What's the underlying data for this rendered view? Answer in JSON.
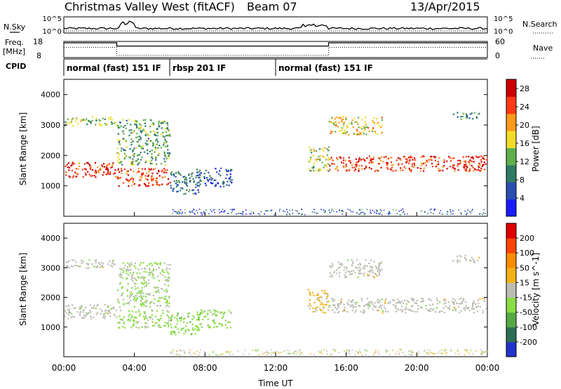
{
  "header": {
    "station": "Christmas Valley West (fitACF)",
    "beam": "Beam 07",
    "date": "13/Apr/2015"
  },
  "strips": {
    "nsky_label": "N.Sky",
    "nsky_ticks": [
      "10^5",
      "10^0"
    ],
    "nsearch_label": "N.Search",
    "nsearch_ticks": [
      "10^5",
      "10^0"
    ],
    "freq_label": "Freq.",
    "freq_unit": "[MHz]",
    "freq_ticks": [
      "18",
      "8"
    ],
    "nave_label": "Nave",
    "nave_ticks": [
      "60",
      "0"
    ],
    "cpid_label": "CPID",
    "modes": [
      {
        "label": "normal (fast) 151 IF",
        "start_h": 0,
        "end_h": 6
      },
      {
        "label": "rbsp 201 IF",
        "start_h": 6,
        "end_h": 12
      },
      {
        "label": "normal (fast) 151 IF",
        "start_h": 12,
        "end_h": 24
      }
    ],
    "freq_profile": [
      [
        0,
        18
      ],
      [
        3,
        18
      ],
      [
        3,
        16
      ],
      [
        15,
        16
      ],
      [
        15,
        18
      ],
      [
        24,
        18
      ]
    ],
    "nave_profile": [
      [
        0,
        38
      ],
      [
        3,
        38
      ],
      [
        3,
        8
      ],
      [
        15,
        8
      ],
      [
        15,
        38
      ],
      [
        24,
        38
      ]
    ]
  },
  "chart_data": [
    {
      "type": "heatmap",
      "title": "Power",
      "ylabel": "Slant Range [km]",
      "yticks": [
        "1000",
        "2000",
        "3000",
        "4000"
      ],
      "ylim": [
        0,
        4500
      ],
      "xlim": [
        0,
        24
      ],
      "colorbar": {
        "label": "Power [dB]",
        "ticks": [
          "4",
          "8",
          "12",
          "16",
          "20",
          "24",
          "28"
        ],
        "range": [
          0,
          30
        ],
        "colors": [
          "#1a1aff",
          "#2a4fb0",
          "#2f7a64",
          "#5fb04a",
          "#f0dc28",
          "#ff9a1a",
          "#ff3a14",
          "#cc0000"
        ]
      },
      "scatter_regions": [
        {
          "x": [
            0.0,
            3.0
          ],
          "y": [
            1300,
            1800
          ],
          "level": 26
        },
        {
          "x": [
            0.0,
            3.0
          ],
          "y": [
            3000,
            3300
          ],
          "level": 14
        },
        {
          "x": [
            3.0,
            6.0
          ],
          "y": [
            1000,
            1600
          ],
          "level": 25
        },
        {
          "x": [
            3.0,
            6.0
          ],
          "y": [
            1700,
            3200
          ],
          "level": 12
        },
        {
          "x": [
            6.0,
            7.7
          ],
          "y": [
            750,
            1500
          ],
          "level": 8
        },
        {
          "x": [
            7.5,
            9.5
          ],
          "y": [
            1000,
            1600
          ],
          "level": 6
        },
        {
          "x": [
            13.8,
            15.0
          ],
          "y": [
            1500,
            2300
          ],
          "level": 15
        },
        {
          "x": [
            15.0,
            24.0
          ],
          "y": [
            1500,
            2000
          ],
          "level": 25
        },
        {
          "x": [
            15.0,
            18.0
          ],
          "y": [
            2700,
            3300
          ],
          "level": 18
        },
        {
          "x": [
            22.0,
            23.5
          ],
          "y": [
            3200,
            3450
          ],
          "level": 10
        }
      ]
    },
    {
      "type": "heatmap",
      "title": "Velocity",
      "ylabel": "Slant Range [km]",
      "yticks": [
        "1000",
        "2000",
        "3000",
        "4000"
      ],
      "ylim": [
        0,
        4500
      ],
      "xlim": [
        0,
        24
      ],
      "colorbar": {
        "label": "Velocity [m s^-1]",
        "ticks": [
          "200",
          "100",
          "50",
          "15",
          "-15",
          "-50",
          "-100",
          "-200"
        ],
        "range": [
          -250,
          250
        ],
        "colors": [
          "#2233cc",
          "#2a6e54",
          "#55aa44",
          "#88dd44",
          "#bdbdb4",
          "#f3b214",
          "#ff8c00",
          "#ff4400",
          "#e00000"
        ]
      },
      "scatter_regions": [
        {
          "x": [
            0.0,
            3.0
          ],
          "y": [
            1300,
            1800
          ],
          "level": 0
        },
        {
          "x": [
            0.0,
            3.0
          ],
          "y": [
            3000,
            3300
          ],
          "level": 0
        },
        {
          "x": [
            3.0,
            6.0
          ],
          "y": [
            1000,
            1600
          ],
          "level": -40
        },
        {
          "x": [
            3.0,
            6.0
          ],
          "y": [
            1700,
            3200
          ],
          "level": -30
        },
        {
          "x": [
            6.0,
            7.7
          ],
          "y": [
            750,
            1500
          ],
          "level": -60
        },
        {
          "x": [
            7.5,
            9.5
          ],
          "y": [
            1000,
            1600
          ],
          "level": -50
        },
        {
          "x": [
            13.8,
            15.0
          ],
          "y": [
            1500,
            2300
          ],
          "level": 40
        },
        {
          "x": [
            15.0,
            24.0
          ],
          "y": [
            1500,
            2000
          ],
          "level": 0
        },
        {
          "x": [
            15.0,
            18.0
          ],
          "y": [
            2700,
            3300
          ],
          "level": 0
        },
        {
          "x": [
            22.0,
            23.5
          ],
          "y": [
            3200,
            3450
          ],
          "level": 0
        }
      ]
    }
  ],
  "xaxis": {
    "label": "Time UT",
    "ticks": [
      "00:00",
      "04:00",
      "08:00",
      "12:00",
      "16:00",
      "20:00",
      "00:00"
    ]
  }
}
